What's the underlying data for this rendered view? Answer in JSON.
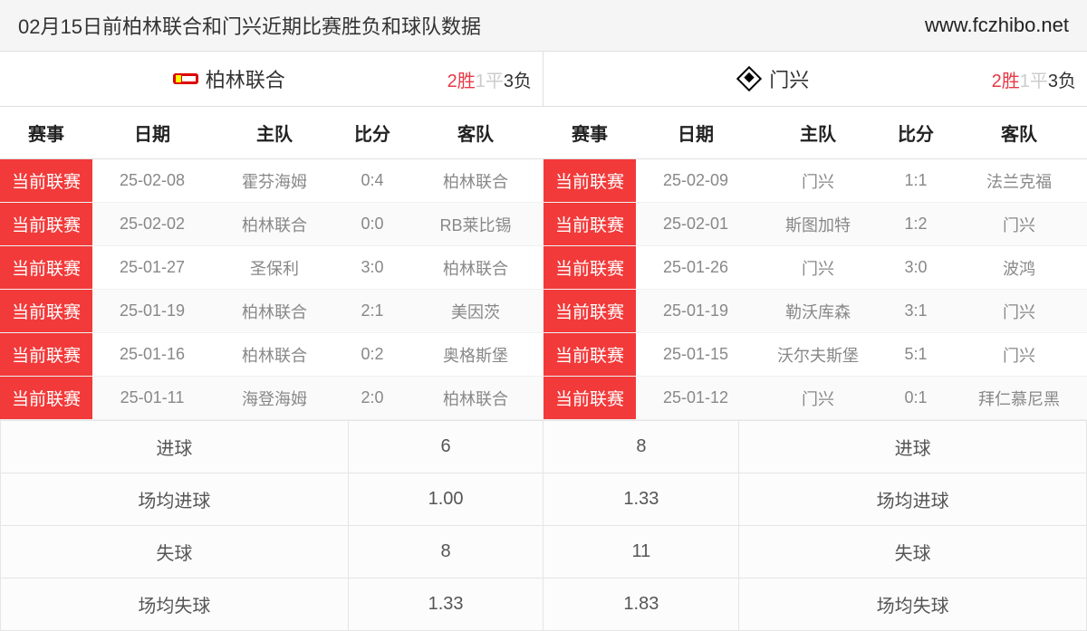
{
  "header": {
    "title": "02月15日前柏林联合和门兴近期比赛胜负和球队数据",
    "url": "www.fczhibo.net"
  },
  "columns": {
    "league": "赛事",
    "date": "日期",
    "home": "主队",
    "score": "比分",
    "away": "客队"
  },
  "leagueTag": "当前联赛",
  "recordLabels": {
    "win": "胜",
    "draw": "平",
    "loss": "负"
  },
  "teams": [
    {
      "name": "柏林联合",
      "logo": "union",
      "record": {
        "win": 2,
        "draw": 1,
        "loss": 3
      },
      "matches": [
        {
          "date": "25-02-08",
          "home": "霍芬海姆",
          "score": "0:4",
          "away": "柏林联合"
        },
        {
          "date": "25-02-02",
          "home": "柏林联合",
          "score": "0:0",
          "away": "RB莱比锡"
        },
        {
          "date": "25-01-27",
          "home": "圣保利",
          "score": "3:0",
          "away": "柏林联合"
        },
        {
          "date": "25-01-19",
          "home": "柏林联合",
          "score": "2:1",
          "away": "美因茨"
        },
        {
          "date": "25-01-16",
          "home": "柏林联合",
          "score": "0:2",
          "away": "奥格斯堡"
        },
        {
          "date": "25-01-11",
          "home": "海登海姆",
          "score": "2:0",
          "away": "柏林联合"
        }
      ]
    },
    {
      "name": "门兴",
      "logo": "diamond",
      "record": {
        "win": 2,
        "draw": 1,
        "loss": 3
      },
      "matches": [
        {
          "date": "25-02-09",
          "home": "门兴",
          "score": "1:1",
          "away": "法兰克福"
        },
        {
          "date": "25-02-01",
          "home": "斯图加特",
          "score": "1:2",
          "away": "门兴"
        },
        {
          "date": "25-01-26",
          "home": "门兴",
          "score": "3:0",
          "away": "波鸿"
        },
        {
          "date": "25-01-19",
          "home": "勒沃库森",
          "score": "3:1",
          "away": "门兴"
        },
        {
          "date": "25-01-15",
          "home": "沃尔夫斯堡",
          "score": "5:1",
          "away": "门兴"
        },
        {
          "date": "25-01-12",
          "home": "门兴",
          "score": "0:1",
          "away": "拜仁慕尼黑"
        }
      ]
    }
  ],
  "stats": {
    "rows": [
      {
        "label": "进球",
        "left": "6",
        "right": "8"
      },
      {
        "label": "场均进球",
        "left": "1.00",
        "right": "1.33"
      },
      {
        "label": "失球",
        "left": "8",
        "right": "11"
      },
      {
        "label": "场均失球",
        "left": "1.33",
        "right": "1.83"
      }
    ]
  },
  "colors": {
    "leagueTagBg": "#f23a3a",
    "winColor": "#e63946",
    "drawColor": "#cccccc",
    "lossColor": "#333333",
    "borderColor": "#e0e0e0"
  }
}
